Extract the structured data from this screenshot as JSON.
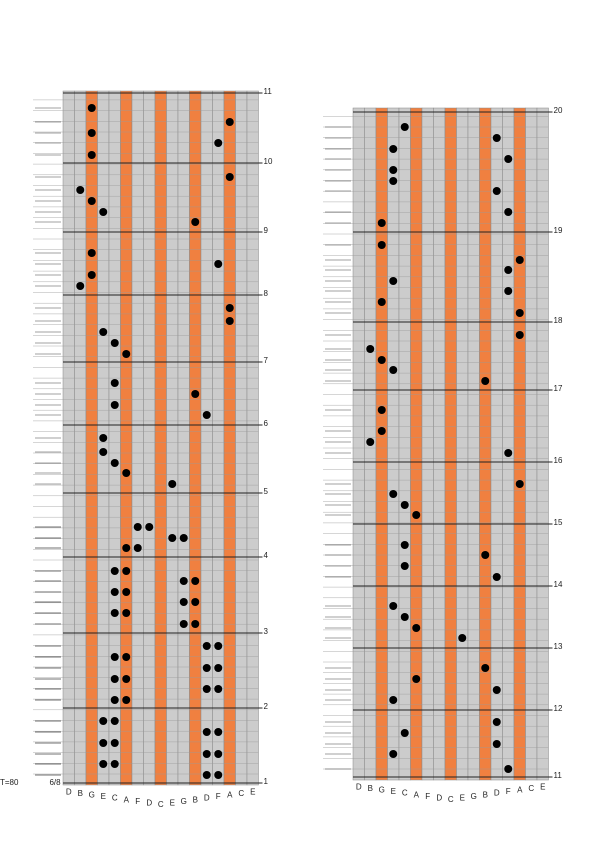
{
  "sheet": {
    "keys": [
      "D",
      "B",
      "G",
      "E",
      "C",
      "A",
      "F",
      "D",
      "C",
      "E",
      "G",
      "B",
      "D",
      "F",
      "A",
      "C",
      "E"
    ],
    "measures": [
      1,
      2,
      3,
      4,
      5,
      6,
      7,
      8,
      9,
      10,
      11,
      12,
      13,
      14,
      15,
      16,
      17,
      18,
      19,
      20
    ],
    "time_signature": "6/8",
    "tempo": "T=80"
  }
}
